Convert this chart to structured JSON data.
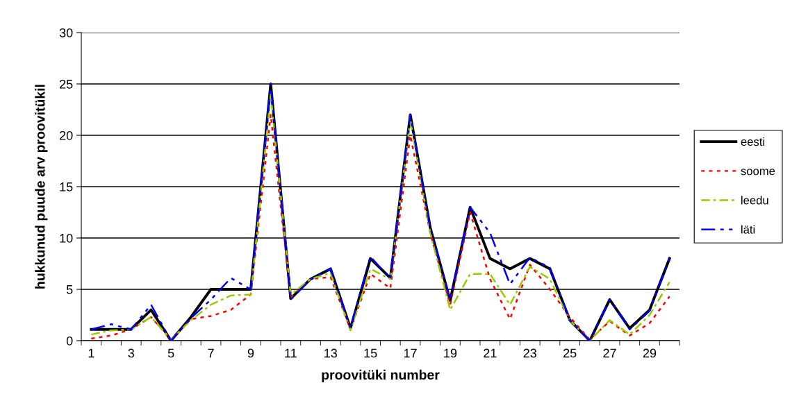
{
  "chart_data": {
    "type": "line",
    "xlabel": "proovitüki number",
    "ylabel": "hukkunud puude arv proovitükil",
    "categories": [
      "1",
      null,
      "3",
      null,
      "5",
      null,
      "7",
      null,
      "9",
      null,
      "11",
      null,
      "13",
      null,
      "15",
      null,
      "17",
      null,
      "19",
      null,
      "21",
      null,
      "23",
      null,
      "25",
      null,
      "27",
      null,
      "29",
      null
    ],
    "ylim": [
      0,
      30
    ],
    "yticks": [
      0,
      5,
      10,
      15,
      20,
      25,
      30
    ],
    "grid": "y",
    "legend": "right",
    "marker": "none",
    "series": [
      {
        "name": "eesti",
        "color": "#000000",
        "line_style": "solid",
        "values": [
          1.1,
          1.1,
          1.1,
          3,
          0,
          2.3,
          5,
          5,
          5,
          25,
          4.1,
          6,
          7,
          1.2,
          8,
          6.1,
          22,
          11,
          3.9,
          13,
          8,
          7,
          8,
          7,
          2,
          0,
          4,
          1.2,
          3,
          8
        ]
      },
      {
        "name": "soome",
        "color": "#ff0000",
        "line_style": "dotted",
        "values": [
          0.2,
          0.5,
          1.1,
          2.3,
          0.1,
          2.1,
          2.4,
          3,
          4.5,
          22,
          4.2,
          6,
          6.2,
          1.1,
          6.5,
          5.1,
          20,
          10.5,
          3.5,
          12.5,
          6,
          2.1,
          7.4,
          5,
          2.3,
          0.1,
          1.9,
          0.5,
          1.7,
          4.3
        ]
      },
      {
        "name": "leedu",
        "color": "#99cc00",
        "line_style": "dashdot",
        "values": [
          0.6,
          1,
          1.1,
          2.3,
          0.1,
          2,
          3.5,
          4.4,
          4.5,
          24,
          4.5,
          6,
          6.6,
          1,
          7,
          6,
          21.5,
          10.5,
          3,
          6.5,
          6.5,
          3.5,
          7.2,
          6,
          2,
          0,
          2,
          0.6,
          2.5,
          5.7
        ]
      },
      {
        "name": "läti",
        "color": "#0000ff",
        "line_style": "dashdotdot",
        "values": [
          1.1,
          1.6,
          1.1,
          3.5,
          0,
          2.2,
          4,
          6.1,
          5,
          25,
          4,
          6,
          7,
          1.2,
          8.2,
          6,
          22,
          11,
          4,
          13,
          10.5,
          5.5,
          8.1,
          7.1,
          2,
          0,
          4,
          1.1,
          2.9,
          8
        ]
      }
    ]
  }
}
